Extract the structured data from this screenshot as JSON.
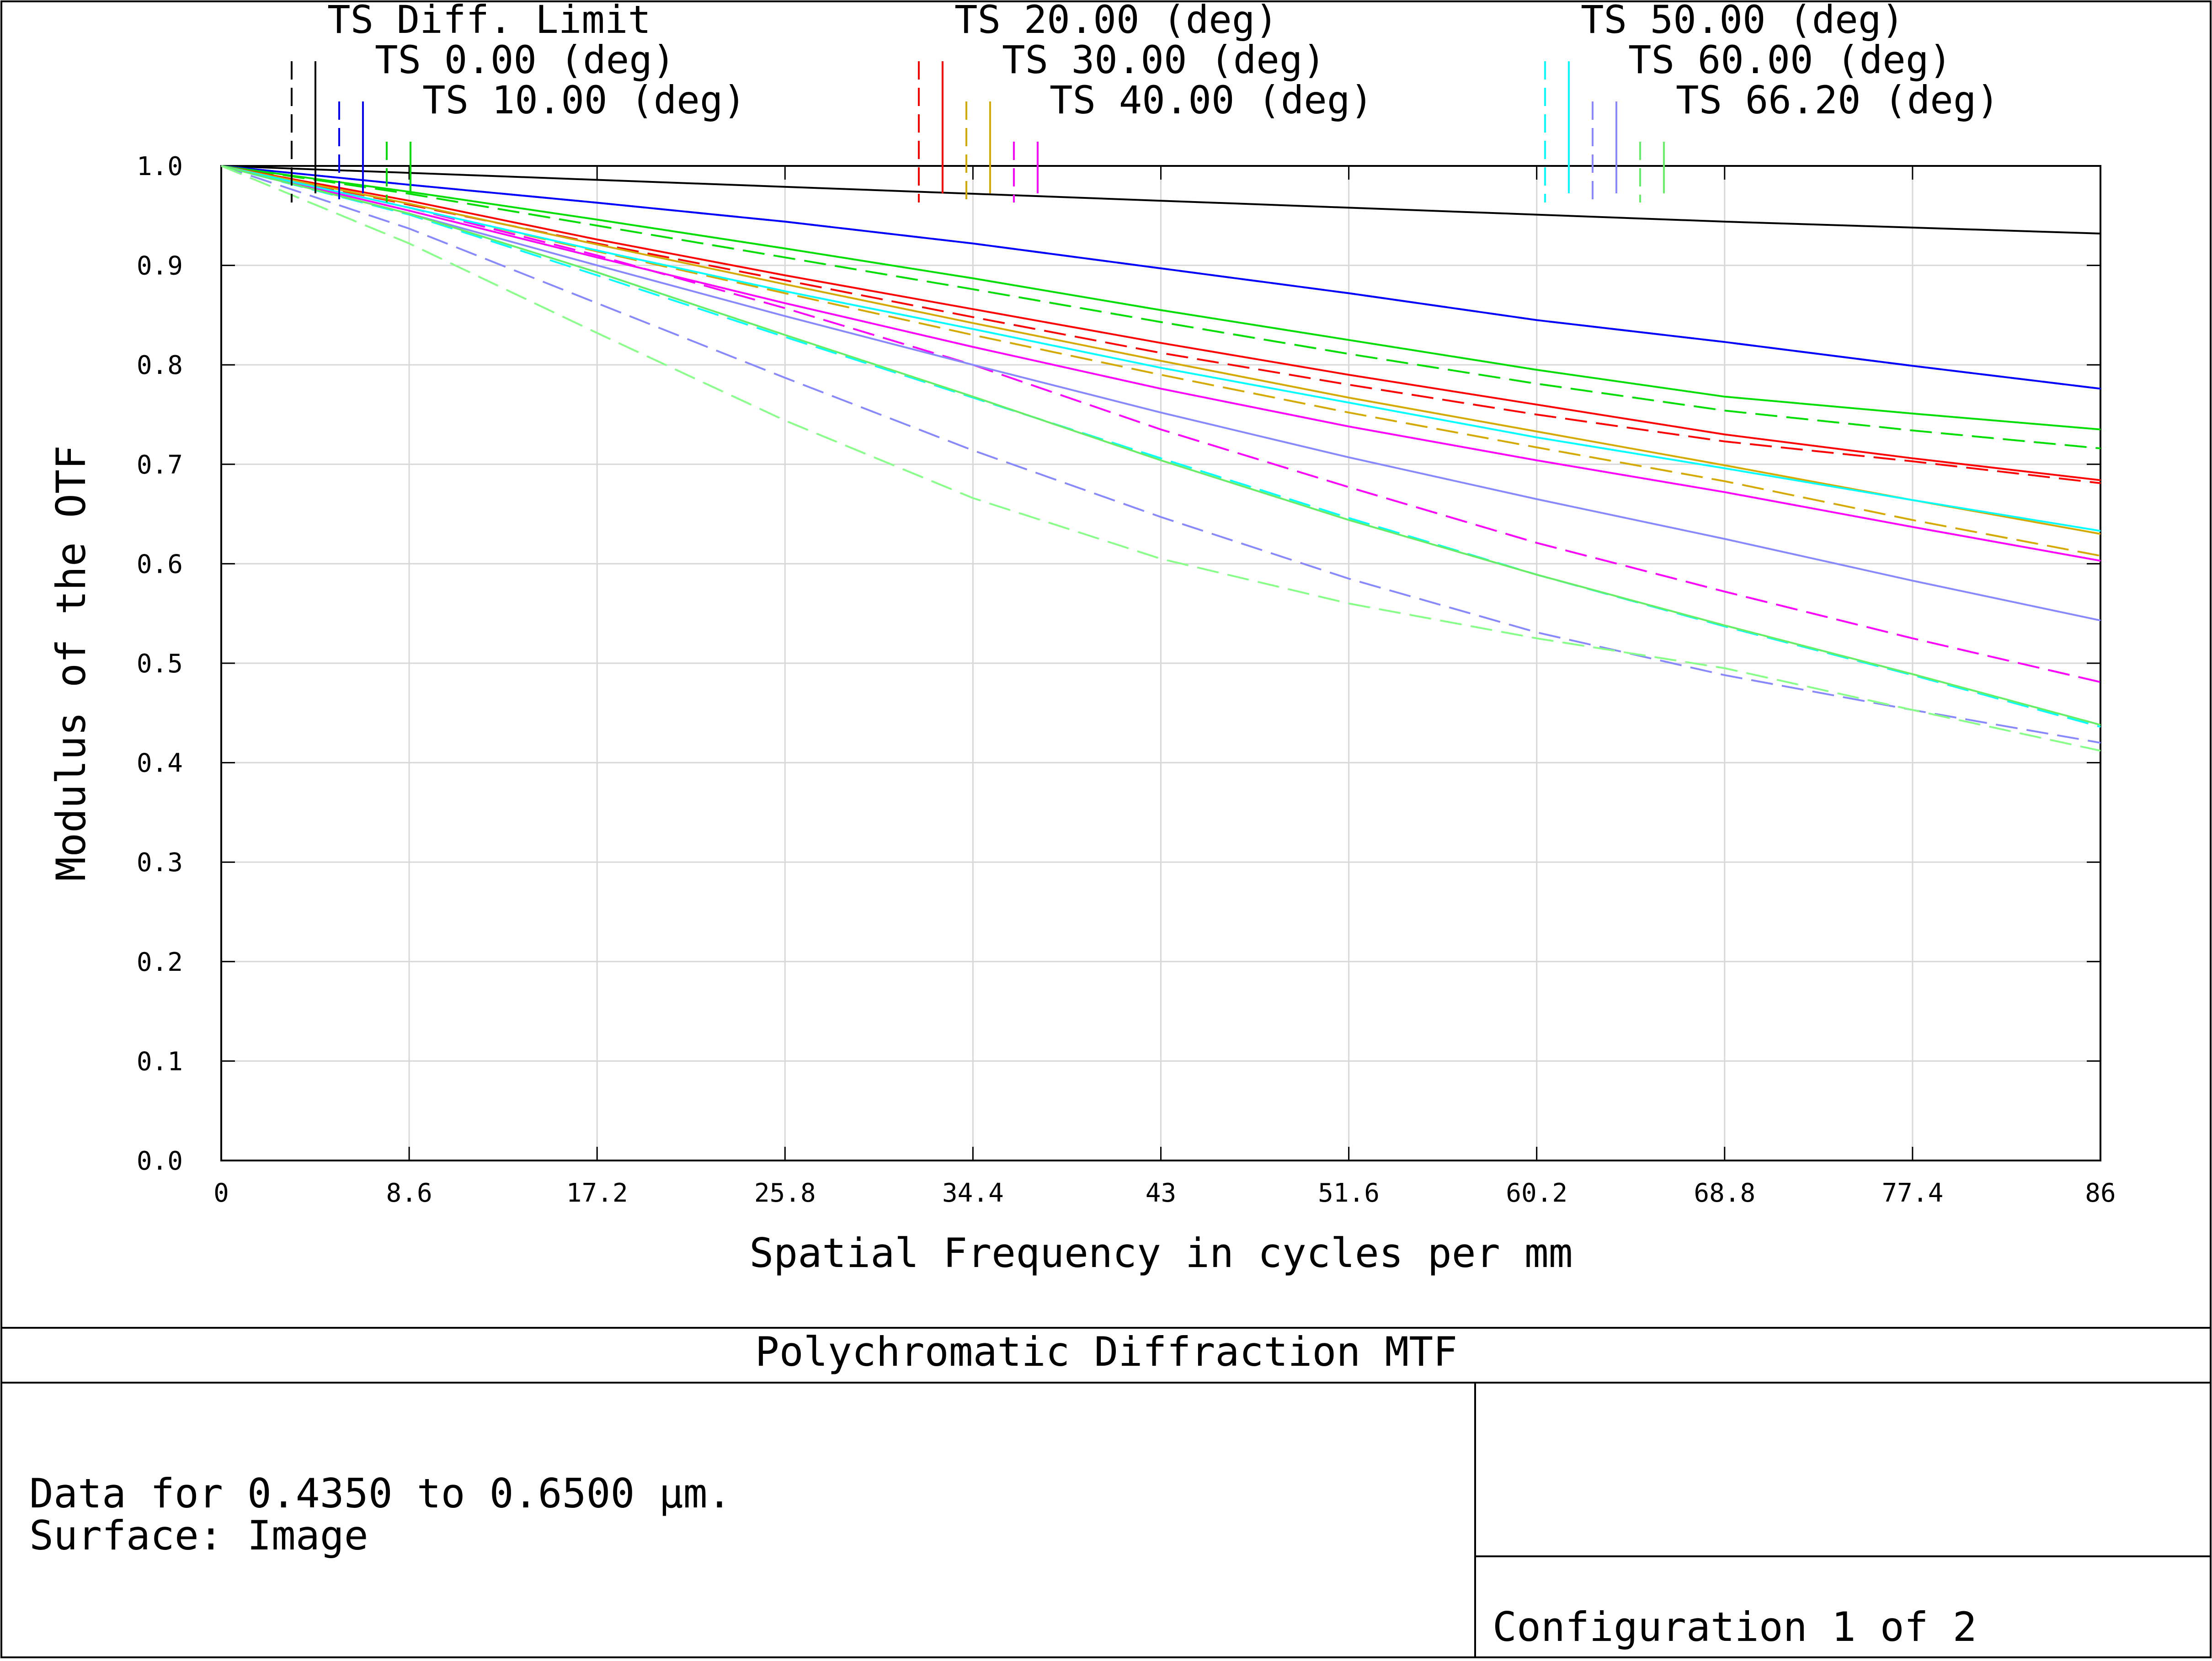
{
  "chart_data": {
    "type": "line",
    "title": "Polychromatic Diffraction MTF",
    "xlabel": "Spatial Frequency in cycles per mm",
    "ylabel": "Modulus of the OTF",
    "xlim": [
      0,
      86
    ],
    "ylim": [
      0,
      1.0
    ],
    "x_ticks": [
      "0",
      "8.6",
      "17.2",
      "25.8",
      "34.4",
      "43",
      "51.6",
      "60.2",
      "68.8",
      "77.4",
      "86"
    ],
    "y_ticks": [
      "0.0",
      "0.1",
      "0.2",
      "0.3",
      "0.4",
      "0.5",
      "0.6",
      "0.7",
      "0.8",
      "0.9",
      "1.0"
    ],
    "grid": true,
    "legend_position": "top",
    "x": [
      0,
      8.6,
      17.2,
      25.8,
      34.4,
      43,
      51.6,
      60.2,
      68.8,
      77.4,
      86
    ],
    "series": [
      {
        "name": "TS Diff. Limit",
        "color": "#000000",
        "style": "solid",
        "values": [
          1.0,
          0.993,
          0.986,
          0.979,
          0.972,
          0.965,
          0.958,
          0.951,
          0.944,
          0.938,
          0.932
        ]
      },
      {
        "name": "TS 0.00 (deg)",
        "color": "#0000ff",
        "style": "solid",
        "values": [
          1.0,
          0.981,
          0.963,
          0.944,
          0.922,
          0.897,
          0.872,
          0.845,
          0.823,
          0.799,
          0.776
        ]
      },
      {
        "name": "TS 0.00 (deg)",
        "color": "#0000ff",
        "style": "dashed",
        "values": [
          1.0,
          0.981,
          0.963,
          0.944,
          0.922,
          0.897,
          0.872,
          0.845,
          0.823,
          0.799,
          0.776
        ]
      },
      {
        "name": "TS 10.00 (deg)",
        "color": "#00dd00",
        "style": "solid",
        "values": [
          1.0,
          0.974,
          0.946,
          0.917,
          0.887,
          0.855,
          0.825,
          0.795,
          0.768,
          0.751,
          0.735
        ]
      },
      {
        "name": "TS 10.00 (deg)",
        "color": "#00dd00",
        "style": "dashed",
        "values": [
          1.0,
          0.972,
          0.94,
          0.908,
          0.876,
          0.843,
          0.811,
          0.781,
          0.754,
          0.734,
          0.716
        ]
      },
      {
        "name": "TS 20.00 (deg)",
        "color": "#ff0000",
        "style": "solid",
        "values": [
          1.0,
          0.965,
          0.926,
          0.89,
          0.856,
          0.822,
          0.79,
          0.76,
          0.73,
          0.706,
          0.684
        ]
      },
      {
        "name": "TS 20.00 (deg)",
        "color": "#ff0000",
        "style": "dashed",
        "values": [
          1.0,
          0.961,
          0.922,
          0.885,
          0.848,
          0.812,
          0.78,
          0.75,
          0.723,
          0.703,
          0.681
        ]
      },
      {
        "name": "TS 30.00 (deg)",
        "color": "#d4aa00",
        "style": "solid",
        "values": [
          1.0,
          0.962,
          0.921,
          0.881,
          0.842,
          0.804,
          0.767,
          0.733,
          0.699,
          0.664,
          0.63
        ]
      },
      {
        "name": "TS 30.00 (deg)",
        "color": "#d4aa00",
        "style": "dashed",
        "values": [
          1.0,
          0.958,
          0.914,
          0.872,
          0.83,
          0.79,
          0.752,
          0.717,
          0.683,
          0.644,
          0.608
        ]
      },
      {
        "name": "TS 40.00 (deg)",
        "color": "#ff00ff",
        "style": "solid",
        "values": [
          1.0,
          0.955,
          0.908,
          0.862,
          0.818,
          0.776,
          0.738,
          0.704,
          0.672,
          0.637,
          0.603
        ]
      },
      {
        "name": "TS 40.00 (deg)",
        "color": "#ff00ff",
        "style": "dashed",
        "values": [
          1.0,
          0.958,
          0.91,
          0.857,
          0.8,
          0.735,
          0.677,
          0.621,
          0.572,
          0.525,
          0.481
        ]
      },
      {
        "name": "TS 50.00 (deg)",
        "color": "#00ffff",
        "style": "solid",
        "values": [
          1.0,
          0.958,
          0.915,
          0.874,
          0.836,
          0.797,
          0.762,
          0.727,
          0.696,
          0.664,
          0.633
        ]
      },
      {
        "name": "TS 50.00 (deg)",
        "color": "#00ffff",
        "style": "dashed",
        "values": [
          1.0,
          0.951,
          0.89,
          0.828,
          0.767,
          0.706,
          0.646,
          0.589,
          0.537,
          0.488,
          0.436
        ]
      },
      {
        "name": "TS 60.00 (deg)",
        "color": "#8888ff",
        "style": "solid",
        "values": [
          1.0,
          0.952,
          0.9,
          0.849,
          0.8,
          0.752,
          0.707,
          0.665,
          0.625,
          0.583,
          0.543
        ]
      },
      {
        "name": "TS 60.00 (deg)",
        "color": "#8888ff",
        "style": "dashed",
        "values": [
          1.0,
          0.937,
          0.862,
          0.787,
          0.714,
          0.647,
          0.585,
          0.531,
          0.488,
          0.453,
          0.42
        ]
      },
      {
        "name": "TS 66.20 (deg)",
        "color": "#66ee66",
        "style": "solid",
        "values": [
          1.0,
          0.952,
          0.893,
          0.83,
          0.768,
          0.704,
          0.644,
          0.589,
          0.538,
          0.489,
          0.438
        ]
      },
      {
        "name": "TS 66.20 (deg)",
        "color": "#88ff88",
        "style": "dashed",
        "values": [
          1.0,
          0.922,
          0.832,
          0.744,
          0.666,
          0.605,
          0.56,
          0.525,
          0.495,
          0.453,
          0.412
        ]
      }
    ],
    "legend": [
      {
        "label": "TS Diff. Limit",
        "color": "#000000"
      },
      {
        "label": "TS 0.00 (deg)",
        "color": "#0000ff"
      },
      {
        "label": "TS 10.00 (deg)",
        "color": "#00dd00"
      },
      {
        "label": "TS 20.00 (deg)",
        "color": "#ff0000"
      },
      {
        "label": "TS 30.00 (deg)",
        "color": "#d4aa00"
      },
      {
        "label": "TS 40.00 (deg)",
        "color": "#ff00ff"
      },
      {
        "label": "TS 50.00 (deg)",
        "color": "#00ffff"
      },
      {
        "label": "TS 60.00 (deg)",
        "color": "#8888ff"
      },
      {
        "label": "TS 66.20 (deg)",
        "color": "#66ee66"
      }
    ]
  },
  "footer": {
    "title": "Polychromatic Diffraction MTF",
    "info_line1": "Data for 0.4350 to 0.6500 µm.",
    "info_line2": "Surface: Image",
    "configuration": "Configuration 1 of 2"
  }
}
